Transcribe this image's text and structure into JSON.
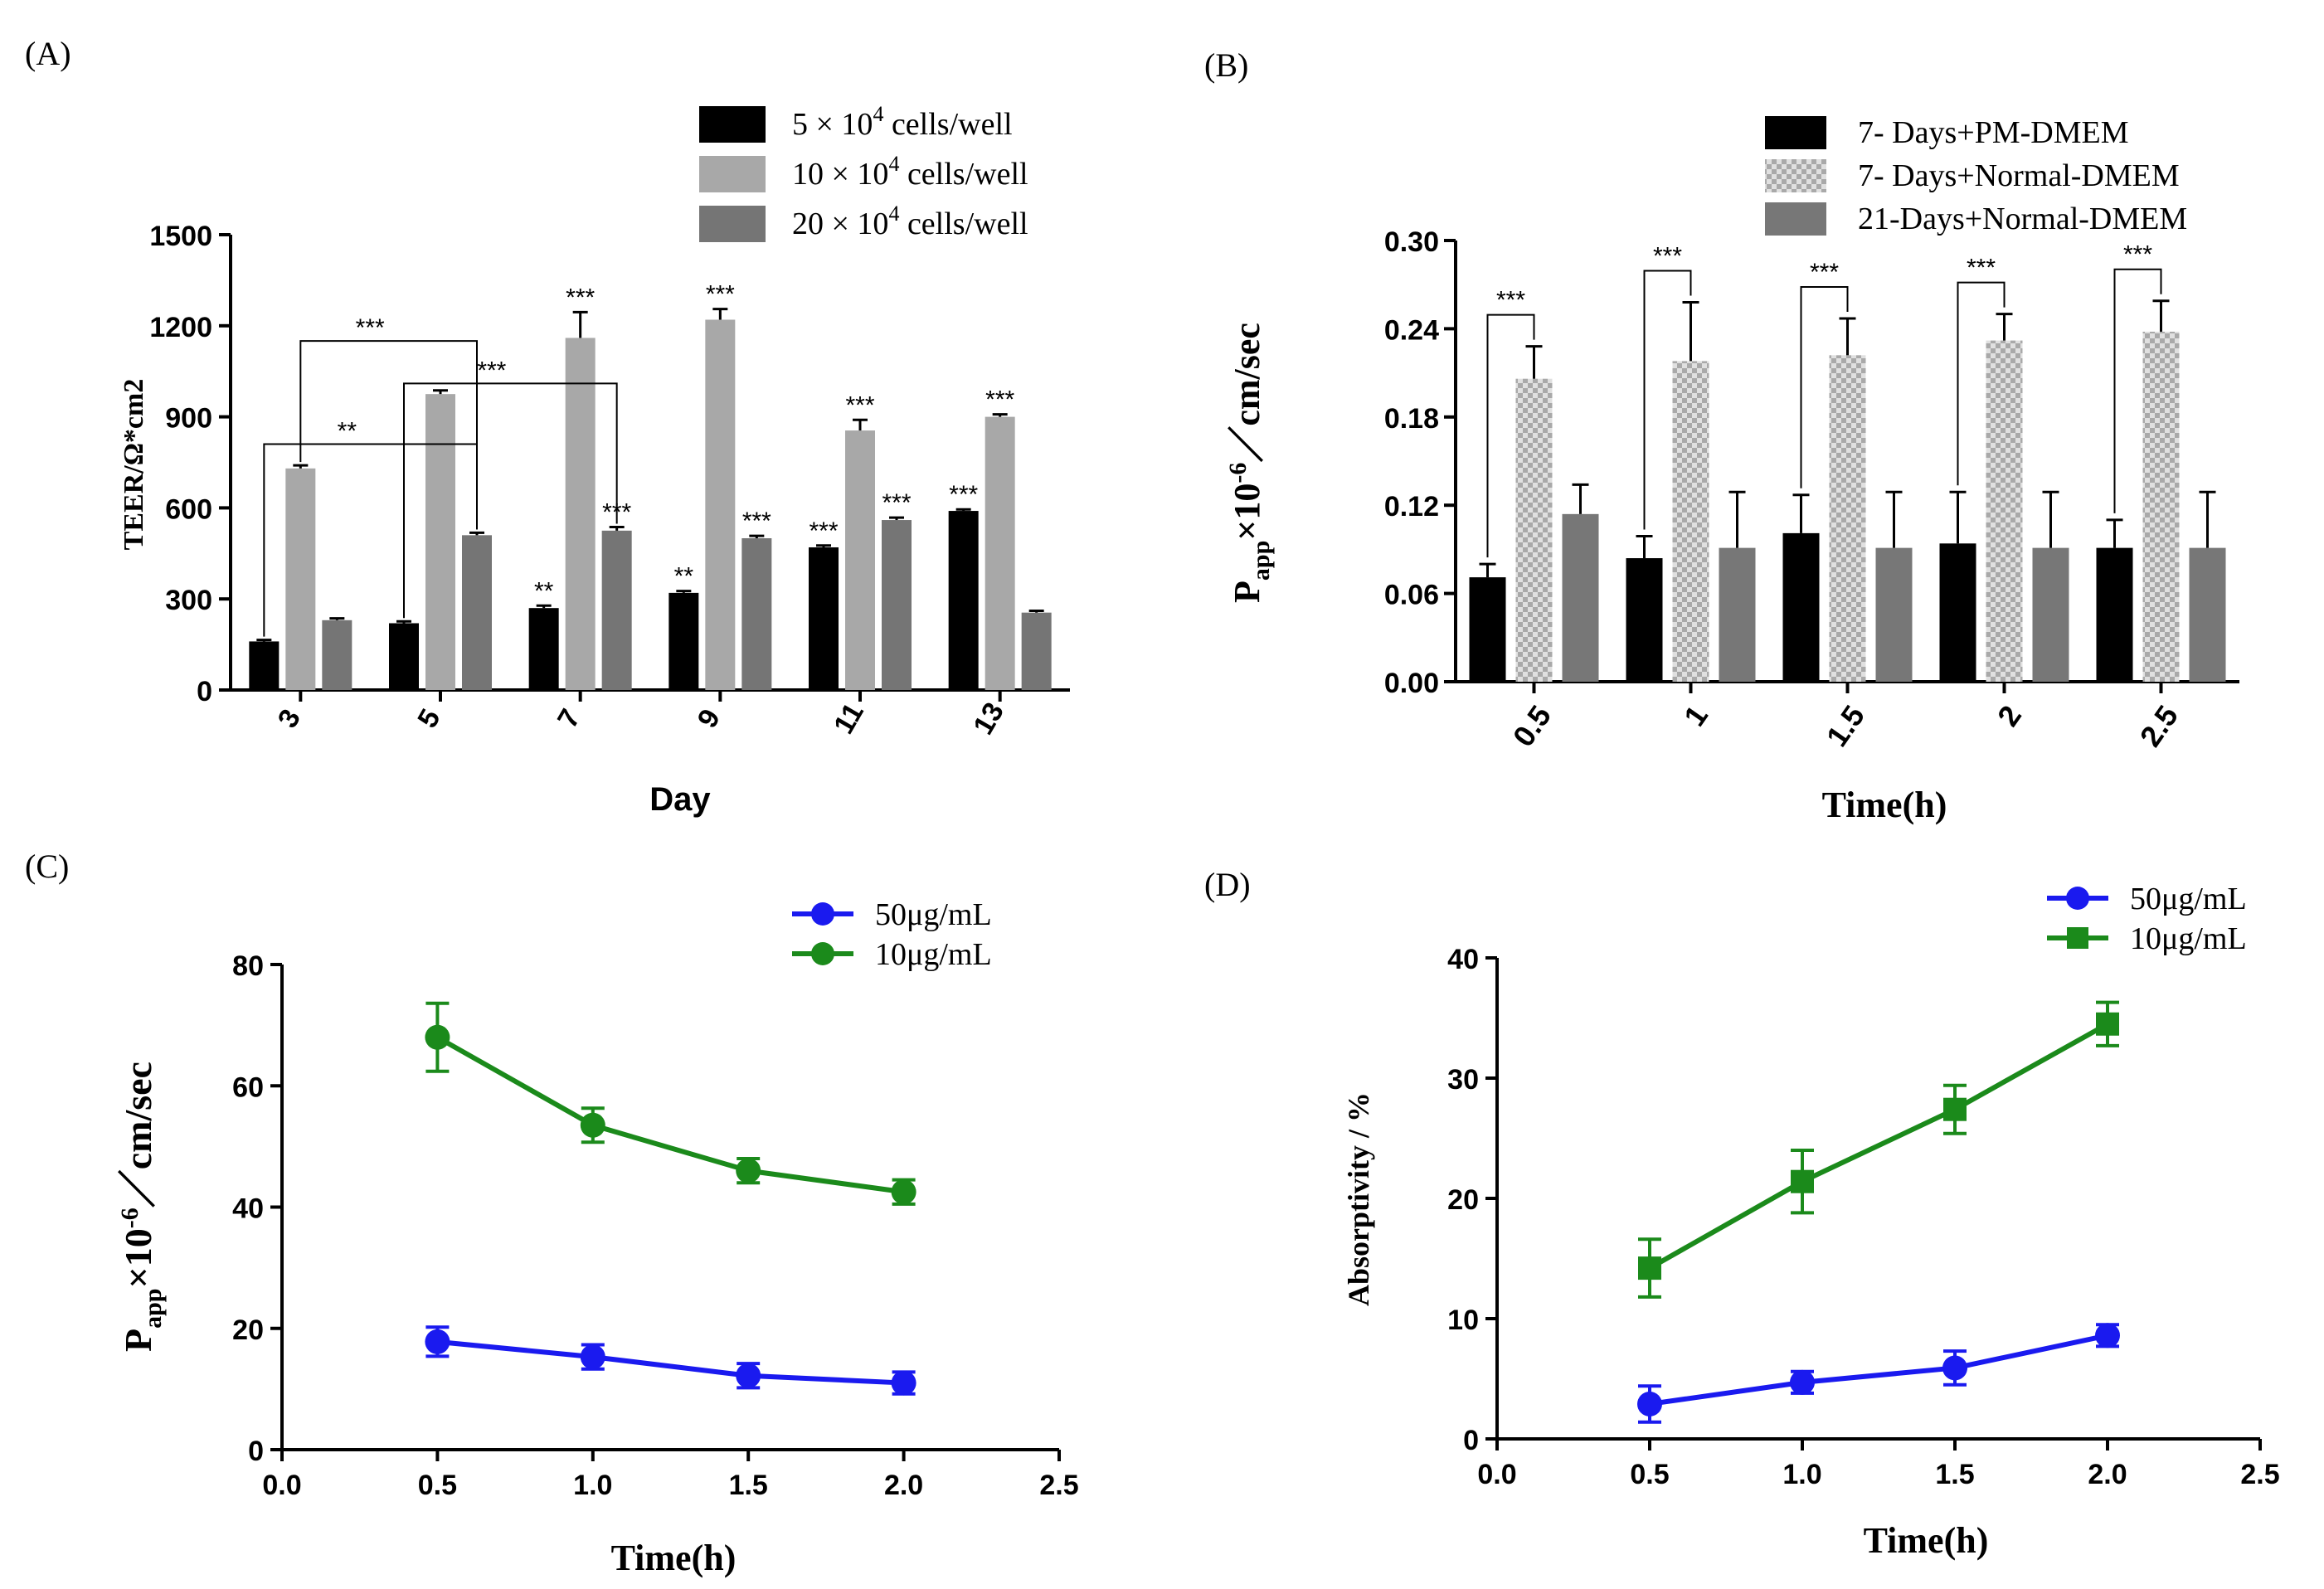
{
  "chart_data": [
    {
      "panel_label": "(A)",
      "type": "bar",
      "ylabel": "TEER/Ω*cm2",
      "xlabel": "Day",
      "ylim": [
        0,
        1500
      ],
      "yticks": [
        "0",
        "300",
        "600",
        "900",
        "1200",
        "1500"
      ],
      "categories": [
        "3",
        "5",
        "7",
        "9",
        "11",
        "13"
      ],
      "series": [
        {
          "name": "5 × 10⁴ cells/well",
          "legend_text": "5  × 10",
          "legend_sup": "4",
          "legend_suffix": " cells/well",
          "color": "#000000",
          "pattern": "solid",
          "values": [
            160,
            220,
            270,
            320,
            470,
            590
          ],
          "errors": [
            5,
            6,
            8,
            6,
            6,
            5
          ],
          "sig": [
            "",
            "",
            "**",
            "**",
            "***",
            "***"
          ]
        },
        {
          "name": "10 × 10⁴ cells/well",
          "legend_text": "10 × 10",
          "legend_sup": "4",
          "legend_suffix": " cells/well",
          "color": "#a8a8a8",
          "pattern": "solid",
          "values": [
            730,
            975,
            1160,
            1220,
            855,
            900
          ],
          "errors": [
            10,
            12,
            85,
            35,
            35,
            8
          ],
          "sig": [
            "",
            "",
            "***",
            "***",
            "***",
            "***"
          ]
        },
        {
          "name": "20 × 10⁴ cells/well",
          "legend_text": "20 × 10",
          "legend_sup": "4",
          "legend_suffix": " cells/well",
          "color": "#757575",
          "pattern": "solid",
          "values": [
            230,
            510,
            525,
            500,
            560,
            255
          ],
          "errors": [
            6,
            8,
            12,
            8,
            8,
            6
          ],
          "sig": [
            "",
            "",
            "***",
            "***",
            "***",
            ""
          ]
        }
      ],
      "brackets": [
        {
          "label": "**",
          "from": [
            0,
            0
          ],
          "to": [
            1,
            2
          ],
          "level": 810
        },
        {
          "label": "***",
          "from": [
            0,
            1
          ],
          "to": [
            1,
            2
          ],
          "level": 1150
        },
        {
          "label": "***",
          "from": [
            1,
            0
          ],
          "to": [
            2,
            2
          ],
          "level": 1010
        }
      ]
    },
    {
      "panel_label": "(B)",
      "type": "bar",
      "ylabel_main": "P",
      "ylabel_sub": "app",
      "ylabel_mid": "×10",
      "ylabel_sup": "-6",
      "ylabel_tail": "／cm/sec",
      "xlabel": "Time(h)",
      "ylim": [
        0,
        0.3
      ],
      "yticks": [
        "0.00",
        "0.06",
        "0.12",
        "0.18",
        "0.24",
        "0.30"
      ],
      "categories": [
        "0.5",
        "1",
        "1.5",
        "2",
        "2.5"
      ],
      "series": [
        {
          "name": "7- Days+PM-DMEM",
          "color": "#000000",
          "pattern": "solid",
          "values": [
            0.071,
            0.084,
            0.101,
            0.094,
            0.091
          ],
          "errors": [
            0.009,
            0.015,
            0.026,
            0.035,
            0.019
          ]
        },
        {
          "name": "7- Days+Normal-DMEM",
          "color": "#c8c8c8",
          "pattern": "checker",
          "values": [
            0.206,
            0.218,
            0.222,
            0.232,
            0.238
          ],
          "errors": [
            0.022,
            0.04,
            0.025,
            0.018,
            0.021
          ]
        },
        {
          "name": "21-Days+Normal-DMEM",
          "color": "#777777",
          "pattern": "solid",
          "values": [
            0.114,
            0.091,
            0.091,
            0.091,
            0.091
          ],
          "errors": [
            0.02,
            0.038,
            0.038,
            0.038,
            0.038
          ]
        }
      ],
      "significance": [
        "***",
        "***",
        "***",
        "***",
        "***"
      ]
    },
    {
      "panel_label": "(C)",
      "type": "line",
      "ylabel_main": "P",
      "ylabel_sub": "app",
      "ylabel_mid": "×10",
      "ylabel_sup": "-6",
      "ylabel_tail": "／cm/sec",
      "xlabel": "Time(h)",
      "xlim": [
        0,
        2.5
      ],
      "ylim": [
        0,
        80
      ],
      "xticks": [
        "0.0",
        "0.5",
        "1.0",
        "1.5",
        "2.0",
        "2.5"
      ],
      "yticks": [
        "0",
        "20",
        "40",
        "60",
        "80"
      ],
      "x": [
        0.5,
        1.0,
        1.5,
        2.0
      ],
      "series": [
        {
          "name": "50μg/mL",
          "color": "#1a1aef",
          "marker": "circle",
          "values": [
            17.8,
            15.3,
            12.2,
            11.0
          ],
          "errors": [
            2.4,
            2.0,
            2.0,
            1.8
          ]
        },
        {
          "name": "10μg/mL",
          "color": "#1b8a1b",
          "marker": "circle",
          "values": [
            68.0,
            53.5,
            46.0,
            42.5
          ],
          "errors": [
            5.6,
            2.8,
            2.0,
            2.0
          ]
        }
      ]
    },
    {
      "panel_label": "(D)",
      "type": "line",
      "ylabel": "Absorptivity / %",
      "xlabel": "Time(h)",
      "xlim": [
        0,
        2.5
      ],
      "ylim": [
        0,
        40
      ],
      "xticks": [
        "0.0",
        "0.5",
        "1.0",
        "1.5",
        "2.0",
        "2.5"
      ],
      "yticks": [
        "0",
        "10",
        "20",
        "30",
        "40"
      ],
      "x": [
        0.5,
        1.0,
        1.5,
        2.0
      ],
      "series": [
        {
          "name": "50μg/mL",
          "color": "#1a1aef",
          "marker": "circle",
          "values": [
            2.9,
            4.7,
            5.9,
            8.6
          ],
          "errors": [
            1.5,
            0.9,
            1.4,
            0.9
          ]
        },
        {
          "name": "10μg/mL",
          "color": "#1b8a1b",
          "marker": "square",
          "values": [
            14.2,
            21.4,
            27.4,
            34.5
          ],
          "errors": [
            2.4,
            2.6,
            2.0,
            1.8
          ]
        }
      ]
    }
  ]
}
